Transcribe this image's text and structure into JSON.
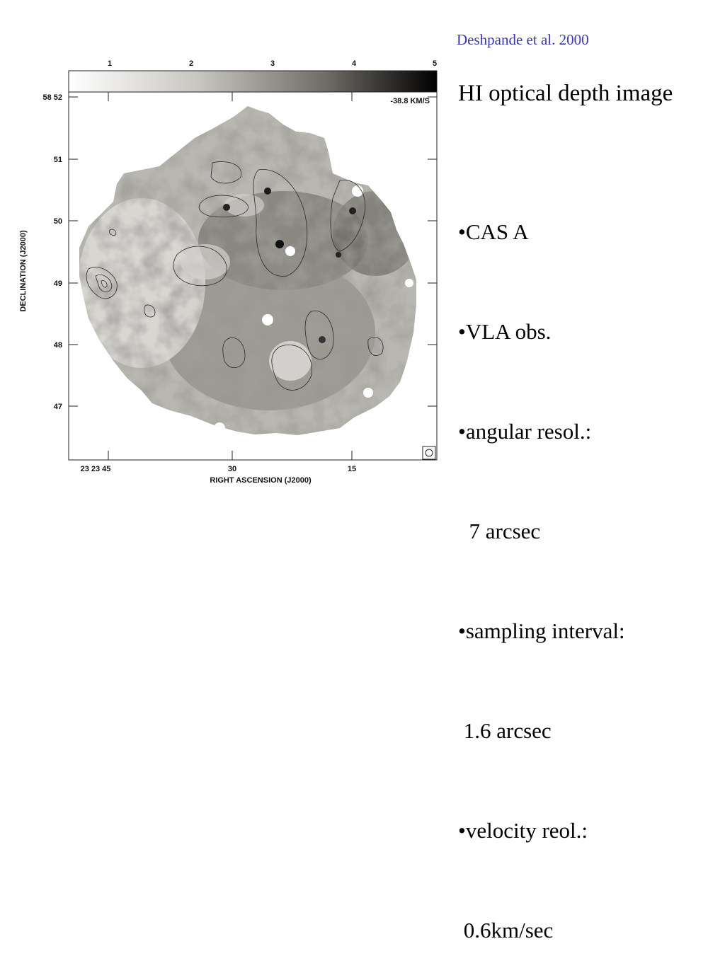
{
  "slide": {
    "citation": "Deshpande et al. 2000",
    "title": "HI optical depth image",
    "bullets": [
      "•CAS A",
      "•VLA obs.",
      "•angular resol.:",
      "  7 arcsec",
      "•sampling interval:",
      " 1.6 arcsec",
      "•velocity reol.:",
      " 0.6km/sec"
    ]
  },
  "figure": {
    "colorbar_ticks": [
      "1",
      "2",
      "3",
      "4",
      "5"
    ],
    "velocity_label": "-38.8 KM/S",
    "y_axis_label": "DECLINATION (J2000)",
    "y_ticks": [
      "58 52",
      "51",
      "50",
      "49",
      "48",
      "47"
    ],
    "x_axis_label": "RIGHT ASCENSION (J2000)",
    "x_ticks": [
      "23 23 45",
      "30",
      "15"
    ],
    "beam_icon": "circle-beam-icon",
    "colormap": [
      "#ffffff",
      "#000000"
    ]
  }
}
